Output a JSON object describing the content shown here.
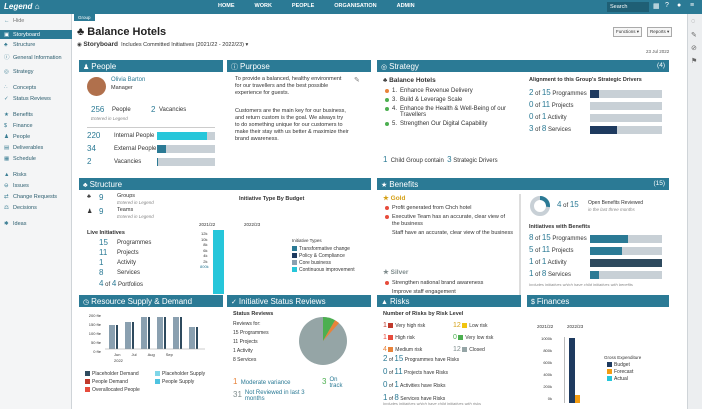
{
  "app": {
    "logo": "Legend",
    "logo_icon": "home-icon",
    "search": "Search"
  },
  "nav": {
    "items": [
      "HOME",
      "WORK",
      "PEOPLE",
      "ORGANISATION",
      "ADMIN"
    ]
  },
  "sidebar": {
    "hide": "Hide",
    "items": [
      "Storyboard",
      "Structure",
      "General Information",
      "Strategy",
      "Concepts",
      "Status Reviews",
      "Benefits",
      "Finance",
      "People",
      "Deliverables",
      "Schedule",
      "Risks",
      "Issues",
      "Change Requests",
      "Decisions",
      "Ideas"
    ]
  },
  "header": {
    "tag": "Group",
    "title": "Balance Hotels",
    "breadcrumb": "Storyboard",
    "filter": "Includes Committed Initiatives (2021/22 - 2022/23)",
    "functions": "Functions",
    "reports": "Reports",
    "date": "23 Jul 2022"
  },
  "people": {
    "title": "People",
    "name": "Olivia Barton",
    "role": "Manager",
    "people_count": "256",
    "people_label": "People",
    "entered": "Entered in Legend",
    "vacancies_count": "2",
    "vacancies_label": "Vacancies",
    "rows": [
      {
        "n": "220",
        "label": "Internal People",
        "fill": 0.86
      },
      {
        "n": "34",
        "label": "External People",
        "fill": 0.15
      },
      {
        "n": "2",
        "label": "Vacancies",
        "fill": 0.01
      }
    ]
  },
  "purpose": {
    "title": "Purpose",
    "p1": "To provide a balanced, healthy environment for our travellers and the best possible experience for guests.",
    "p2": "Customers are the main key for our business, and return custom is the goal. We always try to do something unique for our customers to make their stay with us better & maximize their brand awareness."
  },
  "strategy": {
    "title": "Strategy",
    "count": "(4)",
    "name": "Balance Hotels",
    "items": [
      {
        "n": "1.",
        "t": "Enhance Revenue Delivery",
        "c": "#e8833a"
      },
      {
        "n": "3.",
        "t": "Build & Leverage Scale",
        "c": "#4caf50"
      },
      {
        "n": "4.",
        "t": "Enhance the Health & Well-Being of our Travellers",
        "c": "#4caf50"
      },
      {
        "n": "5.",
        "t": "Strengthen Our Digital Capability",
        "c": "#4caf50"
      }
    ],
    "child_n": "1",
    "child_t": "Child Group contain",
    "child_m": "3",
    "child_e": "Strategic Drivers",
    "align_title": "Alignment to this Group's Strategic Drivers",
    "align": [
      {
        "a": "2",
        "of": "of",
        "b": "15",
        "label": "Programmes",
        "fill": 0.13
      },
      {
        "a": "0",
        "of": "of",
        "b": "11",
        "label": "Projects",
        "fill": 0
      },
      {
        "a": "0",
        "of": "of",
        "b": "1",
        "label": "Activity",
        "fill": 0
      },
      {
        "a": "3",
        "of": "of",
        "b": "8",
        "label": "Services",
        "fill": 0.38
      }
    ]
  },
  "structure": {
    "title": "Structure",
    "groups_n": "9",
    "groups_l": "Groups",
    "teams_n": "9",
    "teams_l": "Teams",
    "entered": "Entered in Legend",
    "live": "Live Initiatives",
    "rows": [
      {
        "n": "15",
        "l": "Programmes"
      },
      {
        "n": "11",
        "l": "Projects"
      },
      {
        "n": "1",
        "l": "Activity"
      },
      {
        "n": "8",
        "l": "Services"
      }
    ],
    "portf_n": "4",
    "portf_of": "of",
    "portf_m": "4",
    "portf_l": "Portfolios",
    "budget_title": "Initiative Type By Budget",
    "year1": "2021/22",
    "year2": "2022/23",
    "ticks": [
      "12k",
      "10k",
      "8k",
      "6k",
      "4k",
      "2k"
    ],
    "bar_label": "800k",
    "legend_title": "Initiative Types",
    "legend": [
      {
        "t": "Transformative change",
        "c": "#2b7a95"
      },
      {
        "t": "Policy & Compliance",
        "c": "#1e3a5f"
      },
      {
        "t": "Core business",
        "c": "#8aa0b0"
      },
      {
        "t": "Continuous improvement",
        "c": "#26c6da"
      }
    ]
  },
  "benefits": {
    "title": "Benefits",
    "count": "(15)",
    "gold": "Gold",
    "gold_items": [
      "Profit generated from Chch hotel",
      "Executive Team has an accurate, clear view of the business",
      "Staff have an accurate, clear view of the business"
    ],
    "silver": "Silver",
    "silver_items": [
      "Strengthen national brand awareness",
      "Improve staff engagement"
    ],
    "rev_a": "4",
    "rev_of": "of",
    "rev_b": "15",
    "rev_l": "Open Benefits Reviewed",
    "rev_sub": "in the last three months",
    "ib_title": "Initiatives with Benefits",
    "ib": [
      {
        "a": "8",
        "b": "15",
        "l": "Programmes",
        "fill": 0.53
      },
      {
        "a": "5",
        "b": "11",
        "l": "Projects",
        "fill": 0.45
      },
      {
        "a": "1",
        "b": "1",
        "l": "Activity",
        "fill": 1
      },
      {
        "a": "1",
        "b": "8",
        "l": "Services",
        "fill": 0.13
      }
    ],
    "note": "Includes initiatives which have child initiatives with benefits"
  },
  "resource": {
    "title": "Resource Supply & Demand",
    "ticks": [
      "200 fte",
      "150 fte",
      "100 fte",
      "50 fte",
      "0 fte"
    ],
    "months": [
      "Jun",
      "Jul",
      "Aug",
      "Sep"
    ],
    "year": "2022",
    "legend": [
      {
        "t": "Placeholder Demand",
        "c": "#2e4a5e"
      },
      {
        "t": "Placeholder Supply",
        "c": "#7fd6e8"
      },
      {
        "t": "People Demand",
        "c": "#c0392b"
      },
      {
        "t": "People Supply",
        "c": "#4fc3e0"
      },
      {
        "t": "Overallocated People",
        "c": "#e74c3c"
      }
    ]
  },
  "status": {
    "title": "Initiative Status Reviews",
    "sub": "Status Reviews",
    "reviews_for": "Reviews for:",
    "list": [
      "15 Programmes",
      "11 Projects",
      "1 Activity",
      "8 Services"
    ],
    "rows": [
      {
        "n": "1",
        "l": "Moderate variance",
        "c": "#e8833a"
      },
      {
        "n": "3",
        "l": "On track",
        "c": "#4caf50"
      },
      {
        "n": "31",
        "l": "Not Reviewed in last 3 months",
        "c": "#95a5a6"
      }
    ]
  },
  "risks": {
    "title": "Risks",
    "sub": "Number of Risks by Risk Level",
    "levels": [
      {
        "n": "1",
        "l": "Very high risk",
        "c": "#c0392b"
      },
      {
        "n": "1",
        "l": "High risk",
        "c": "#e74c3c"
      },
      {
        "n": "4",
        "l": "Medium risk",
        "c": "#e8833a"
      },
      {
        "n": "12",
        "l": "Low risk",
        "c": "#f1c40f"
      },
      {
        "n": "0",
        "l": "Very low risk",
        "c": "#4caf50"
      },
      {
        "n": "12",
        "l": "Closed",
        "c": "#95a5a6"
      }
    ],
    "rows": [
      {
        "a": "2",
        "b": "15",
        "l": "Programmes have Risks"
      },
      {
        "a": "0",
        "b": "11",
        "l": "Projects have Risks"
      },
      {
        "a": "0",
        "b": "1",
        "l": "Activities have Risks"
      },
      {
        "a": "1",
        "b": "8",
        "l": "Services have Risks"
      }
    ],
    "note": "Includes initiatives which have child initiatives with risks"
  },
  "finances": {
    "title": "Finances",
    "y1": "2021/22",
    "y2": "2022/23",
    "ticks": [
      "1000k",
      "800k",
      "600k",
      "400k",
      "200k",
      "0k"
    ],
    "legend_title": "Gross Expenditure",
    "legend": [
      {
        "t": "Budget",
        "c": "#1e3a5f"
      },
      {
        "t": "Forecast",
        "c": "#f39c12"
      },
      {
        "t": "Actual",
        "c": "#26c6da"
      }
    ]
  }
}
